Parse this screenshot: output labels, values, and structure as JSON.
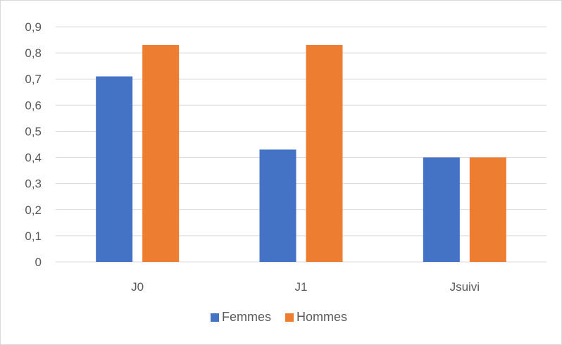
{
  "chart_data": {
    "type": "bar",
    "categories": [
      "J0",
      "J1",
      "Jsuivi"
    ],
    "series": [
      {
        "name": "Femmes",
        "values": [
          0.71,
          0.43,
          0.4
        ],
        "color": "#4472C4"
      },
      {
        "name": "Hommes",
        "values": [
          0.83,
          0.83,
          0.4
        ],
        "color": "#ED7D31"
      }
    ],
    "ylim": [
      0,
      0.9
    ],
    "yticks": [
      "0",
      "0,1",
      "0,2",
      "0,3",
      "0,4",
      "0,5",
      "0,6",
      "0,7",
      "0,8",
      "0,9"
    ],
    "grid": true,
    "legend": "bottom"
  }
}
